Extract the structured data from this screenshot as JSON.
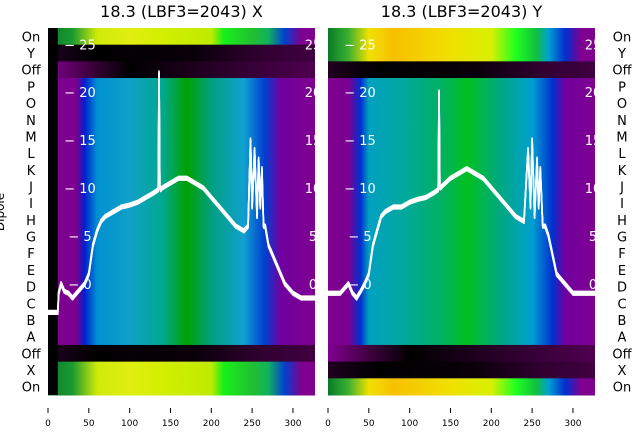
{
  "chart_data": [
    {
      "type": "heatmap",
      "title": "18.3 (LBF3=2043) X",
      "ylabel": "Dipole",
      "rows": [
        "On",
        "Y",
        "Off",
        "P",
        "O",
        "N",
        "M",
        "L",
        "K",
        "J",
        "I",
        "H",
        "G",
        "F",
        "E",
        "D",
        "C",
        "B",
        "A",
        "Off",
        "X",
        "On"
      ],
      "row_profiles": [
        "on",
        "off",
        "dim",
        "beam",
        "beam",
        "beam",
        "beam",
        "beam",
        "beam",
        "beam",
        "beam",
        "beam",
        "beam",
        "beam",
        "beam",
        "beam",
        "beam",
        "beam",
        "beam",
        "off",
        "on",
        "on"
      ],
      "xlim": [
        0,
        327
      ],
      "xticks": [
        0,
        50,
        100,
        150,
        200,
        250,
        300
      ],
      "y2lim": [
        -11.6,
        26.7
      ],
      "y2ticks": [
        0,
        5,
        10,
        15,
        20,
        25
      ],
      "series": [
        {
          "name": "trace",
          "x": [
            0,
            12,
            13,
            16,
            20,
            25,
            30,
            35,
            40,
            45,
            50,
            55,
            60,
            65,
            70,
            80,
            90,
            100,
            110,
            120,
            130,
            135,
            136,
            137,
            138,
            140,
            150,
            160,
            170,
            180,
            190,
            200,
            210,
            220,
            230,
            240,
            245,
            248,
            250,
            253,
            256,
            258,
            260,
            262,
            264,
            266,
            268,
            270,
            275,
            280,
            290,
            300,
            310,
            320,
            327
          ],
          "y": [
            -3,
            -3,
            -1,
            0,
            -0.8,
            -1,
            -1.5,
            -1,
            -0.5,
            0,
            1,
            4,
            5.5,
            6.5,
            7,
            7.5,
            8,
            8.2,
            8.5,
            9,
            9.5,
            9.8,
            22,
            10,
            9.8,
            10,
            10.5,
            11,
            11,
            10.5,
            10,
            9,
            8,
            7,
            6,
            5.5,
            6,
            15,
            8,
            14,
            7,
            13,
            8,
            12,
            6,
            6,
            5,
            4,
            3,
            2,
            0,
            -1,
            -1.5,
            -1.5,
            -1.5
          ]
        }
      ]
    },
    {
      "type": "heatmap",
      "title": "18.3 (LBF3=2043) Y",
      "rows": [
        "On",
        "Y",
        "Off",
        "P",
        "O",
        "N",
        "M",
        "L",
        "K",
        "J",
        "I",
        "H",
        "G",
        "F",
        "E",
        "D",
        "C",
        "B",
        "A",
        "Off",
        "X",
        "On"
      ],
      "row_profiles": [
        "onY",
        "onY",
        "off",
        "beamY",
        "beamY",
        "beamY",
        "beamY",
        "beamY",
        "beamY",
        "beamY",
        "beamY",
        "beamY",
        "beamY",
        "beamY",
        "beamY",
        "beamY",
        "beamY",
        "beamY",
        "beamY",
        "dim",
        "off",
        "onY"
      ],
      "xlim": [
        0,
        327
      ],
      "xticks": [
        0,
        50,
        100,
        150,
        200,
        250,
        300
      ],
      "y2lim": [
        -11.6,
        26.7
      ],
      "y2ticks": [
        0,
        5,
        10,
        15,
        20,
        25
      ],
      "series": [
        {
          "name": "trace",
          "x": [
            0,
            10,
            15,
            20,
            25,
            30,
            35,
            40,
            45,
            50,
            55,
            60,
            65,
            70,
            80,
            90,
            100,
            110,
            120,
            130,
            135,
            136,
            137,
            138,
            140,
            150,
            160,
            170,
            180,
            190,
            200,
            210,
            220,
            230,
            240,
            245,
            248,
            250,
            253,
            256,
            258,
            260,
            263,
            266,
            270,
            275,
            280,
            290,
            300,
            310,
            320,
            327
          ],
          "y": [
            -1,
            -1,
            -1,
            -0.5,
            0,
            -1,
            -1.5,
            -0.8,
            0,
            1,
            4,
            5.5,
            7,
            7.5,
            8,
            8,
            8.5,
            8.8,
            9,
            9.5,
            9.8,
            20,
            10,
            10,
            10.2,
            11,
            11.5,
            12,
            11.5,
            11,
            10,
            9,
            8,
            7,
            6.5,
            14,
            8,
            15,
            7,
            13,
            8,
            12,
            6,
            6,
            5,
            3,
            1,
            0,
            -1,
            -1,
            -1,
            -1
          ]
        }
      ]
    }
  ],
  "colormaps": {
    "on": [
      [
        0,
        "#0a7a2a"
      ],
      [
        30,
        "#1a9a30"
      ],
      [
        60,
        "#cfea0a"
      ],
      [
        100,
        "#e0ee10"
      ],
      [
        150,
        "#d0ee00"
      ],
      [
        200,
        "#bfea00"
      ],
      [
        215,
        "#18f018"
      ],
      [
        250,
        "#20c030"
      ],
      [
        270,
        "#10b060"
      ],
      [
        290,
        "#0040d0"
      ],
      [
        310,
        "#800090"
      ],
      [
        327,
        "#800090"
      ]
    ],
    "onY": [
      [
        0,
        "#0a7a2a"
      ],
      [
        25,
        "#3ab030"
      ],
      [
        50,
        "#f0e000"
      ],
      [
        80,
        "#f8c000"
      ],
      [
        150,
        "#f0e000"
      ],
      [
        200,
        "#d8f000"
      ],
      [
        230,
        "#20ff20"
      ],
      [
        255,
        "#10c040"
      ],
      [
        270,
        "#00a0d0"
      ],
      [
        290,
        "#0030d0"
      ],
      [
        310,
        "#800090"
      ],
      [
        327,
        "#800090"
      ]
    ],
    "off": [
      [
        0,
        "#200020"
      ],
      [
        60,
        "#000000"
      ],
      [
        180,
        "#0a000a"
      ],
      [
        260,
        "#300030"
      ],
      [
        327,
        "#400040"
      ]
    ],
    "dim": [
      [
        0,
        "#800090"
      ],
      [
        50,
        "#400040"
      ],
      [
        100,
        "#000000"
      ],
      [
        230,
        "#300030"
      ],
      [
        327,
        "#500050"
      ]
    ],
    "beam": [
      [
        0,
        "#800090"
      ],
      [
        35,
        "#7a0090"
      ],
      [
        45,
        "#0020d0"
      ],
      [
        60,
        "#0090d0"
      ],
      [
        100,
        "#10a0c8"
      ],
      [
        140,
        "#00a890"
      ],
      [
        170,
        "#00a000"
      ],
      [
        200,
        "#00a080"
      ],
      [
        240,
        "#10a0d0"
      ],
      [
        265,
        "#0040d0"
      ],
      [
        285,
        "#7000a0"
      ],
      [
        327,
        "#800090"
      ]
    ],
    "beamY": [
      [
        0,
        "#800090"
      ],
      [
        25,
        "#7a0090"
      ],
      [
        40,
        "#0030d0"
      ],
      [
        50,
        "#00a0c0"
      ],
      [
        90,
        "#00a8a0"
      ],
      [
        140,
        "#00b060"
      ],
      [
        170,
        "#00c020"
      ],
      [
        210,
        "#00a880"
      ],
      [
        250,
        "#00a0d0"
      ],
      [
        275,
        "#0030d0"
      ],
      [
        290,
        "#7000a0"
      ],
      [
        327,
        "#800090"
      ]
    ]
  }
}
